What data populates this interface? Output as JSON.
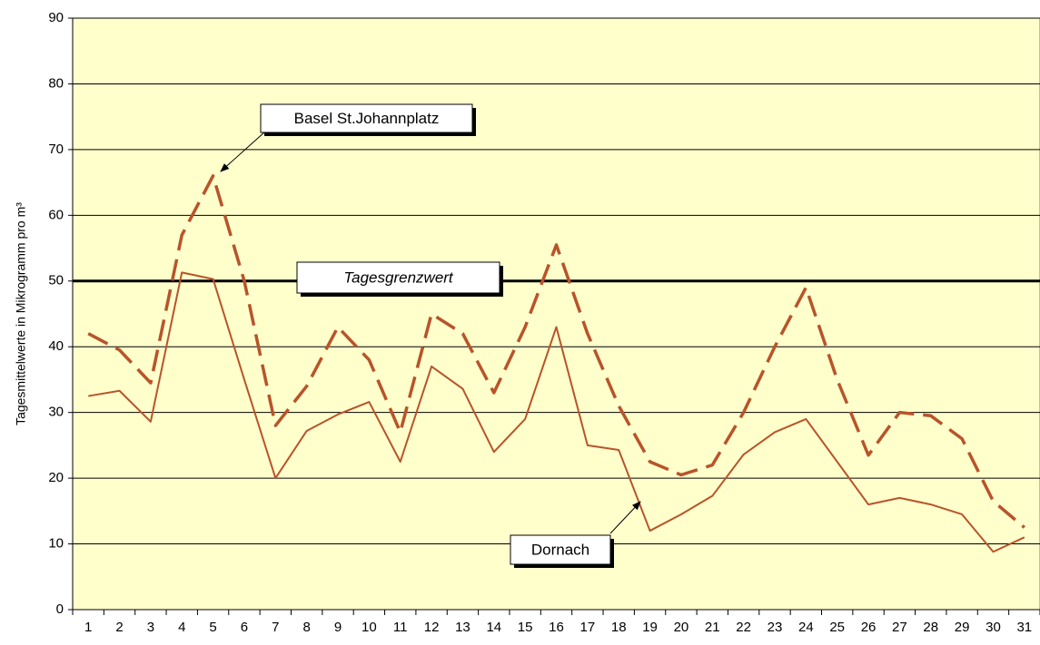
{
  "chart_data": {
    "type": "line",
    "y_label": "Tagesmittelwerte in Mikrogramm pro m³",
    "categories": [
      "1",
      "2",
      "3",
      "4",
      "5",
      "6",
      "7",
      "8",
      "9",
      "10",
      "11",
      "12",
      "13",
      "14",
      "15",
      "16",
      "17",
      "18",
      "19",
      "20",
      "21",
      "22",
      "23",
      "24",
      "25",
      "26",
      "27",
      "28",
      "29",
      "30",
      "31"
    ],
    "series": [
      {
        "name": "Basel St.Johannplatz",
        "color": "#b8542a",
        "dashed": true,
        "values": [
          42,
          39.5,
          34.5,
          57,
          66,
          50,
          28,
          34,
          43,
          38,
          27,
          45,
          42,
          33,
          43,
          55.5,
          42,
          31,
          22.5,
          20.5,
          22,
          30,
          40,
          49,
          35,
          23.5,
          30,
          29.5,
          26,
          16.5,
          12.5
        ]
      },
      {
        "name": "Dornach",
        "color": "#b8542a",
        "dashed": false,
        "values": [
          32.5,
          33.3,
          28.6,
          51.3,
          50.3,
          35,
          20,
          27.2,
          29.7,
          31.6,
          22.5,
          37,
          33.6,
          24,
          29,
          43,
          25,
          24.3,
          12,
          14.5,
          17.3,
          23.6,
          27,
          29,
          22.5,
          16,
          17,
          16,
          14.5,
          8.8,
          11
        ]
      }
    ],
    "threshold": {
      "value": 50,
      "label": "Tagesgrenzwert"
    },
    "ylim": [
      0,
      90
    ],
    "yticks": [
      0,
      10,
      20,
      30,
      40,
      50,
      60,
      70,
      80,
      90
    ],
    "grid": true,
    "background": "#ffffcc"
  }
}
